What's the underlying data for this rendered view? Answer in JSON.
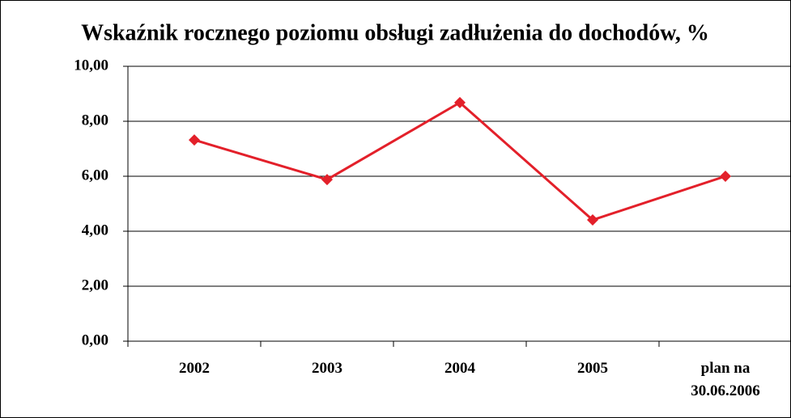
{
  "chart_data": {
    "type": "line",
    "title": "Wskaźnik rocznego poziomu obsługi zadłużenia do dochodów, %",
    "categories": [
      "2002",
      "2003",
      "2004",
      "2005",
      "plan na 30.06.2006"
    ],
    "series": [
      {
        "name": "Wskaźnik",
        "color": "#e3202a",
        "values": [
          7.32,
          5.88,
          8.68,
          4.41,
          6.0
        ]
      }
    ],
    "ylim": [
      0,
      10
    ],
    "yticks": [
      {
        "value": 0,
        "label": "0,00"
      },
      {
        "value": 2,
        "label": "2,00"
      },
      {
        "value": 4,
        "label": "4,00"
      },
      {
        "value": 6,
        "label": "6,00"
      },
      {
        "value": 8,
        "label": "8,00"
      },
      {
        "value": 10,
        "label": "10,00"
      }
    ],
    "grid": true
  }
}
